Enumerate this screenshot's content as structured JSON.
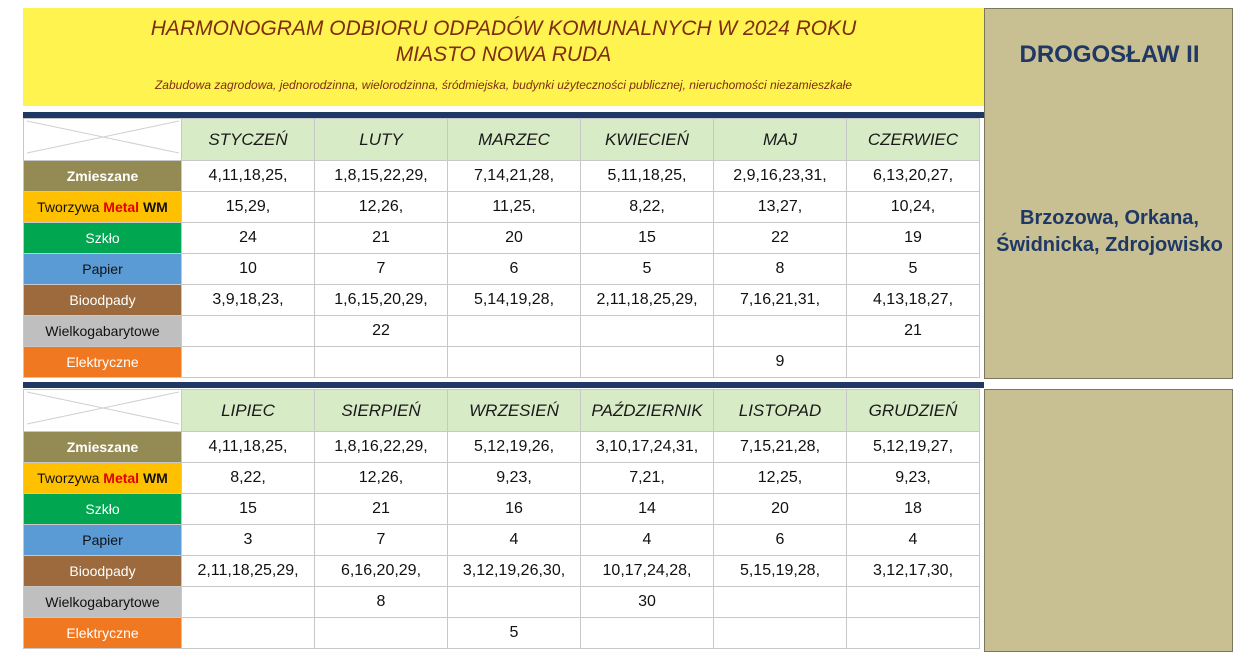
{
  "header": {
    "title_line1": "HARMONOGRAM ODBIORU  ODPADÓW  KOMUNALNYCH W 2024 ROKU",
    "title_line2": "MIASTO NOWA RUDA",
    "subtitle": "Zabudowa zagrodowa, jednorodzinna, wielorodzinna, śródmiejska, budynki użyteczności publicznej, nieruchomości niezamieszkałe"
  },
  "side": {
    "district": "DROGOSŁAW II",
    "streets_line1": "Brzozowa, Orkana,",
    "streets_line2": "Świdnicka, Zdrojowisko"
  },
  "categories": {
    "zmieszane": "Zmieszane",
    "tworzywa_prefix": "Tworzywa ",
    "tworzywa_metal": "Metal",
    "tworzywa_wm": " WM",
    "szklo": "Szkło",
    "papier": "Papier",
    "bioodpady": "Bioodpady",
    "wielkogabarytowe": "Wielkogabarytowe",
    "elektryczne": "Elektryczne"
  },
  "colors": {
    "header_bg": "#FFF44F",
    "title_text": "#7E2C12",
    "separator": "#1F3864",
    "side_panel": "#C8BF93",
    "month_header_bg": "#D8EBC7",
    "zmieszane": "#948A54",
    "tworzywa": "#FFC000",
    "szklo": "#00A650",
    "papier": "#5B9BD5",
    "bioodpady": "#9C6A3C",
    "wielkogabarytowe": "#BFBFBF",
    "elektryczne": "#F07820"
  },
  "table1": {
    "months": [
      "STYCZEŃ",
      "LUTY",
      "MARZEC",
      "KWIECIEŃ",
      "MAJ",
      "CZERWIEC"
    ],
    "zmieszane": [
      "4,11,18,25,",
      "1,8,15,22,29,",
      "7,14,21,28,",
      "5,11,18,25,",
      "2,9,16,23,31,",
      "6,13,20,27,"
    ],
    "tworzywa": [
      "15,29,",
      "12,26,",
      "11,25,",
      "8,22,",
      "13,27,",
      "10,24,"
    ],
    "szklo": [
      "24",
      "21",
      "20",
      "15",
      "22",
      "19"
    ],
    "papier": [
      "10",
      "7",
      "6",
      "5",
      "8",
      "5"
    ],
    "bioodpady": [
      "3,9,18,23,",
      "1,6,15,20,29,",
      "5,14,19,28,",
      "2,11,18,25,29,",
      "7,16,21,31,",
      "4,13,18,27,"
    ],
    "wielkogabarytowe": [
      "",
      "22",
      "",
      "",
      "",
      "21"
    ],
    "elektryczne": [
      "",
      "",
      "",
      "",
      "9",
      ""
    ]
  },
  "table2": {
    "months": [
      "LIPIEC",
      "SIERPIEŃ",
      "WRZESIEŃ",
      "PAŹDZIERNIK",
      "LISTOPAD",
      "GRUDZIEŃ"
    ],
    "zmieszane": [
      "4,11,18,25,",
      "1,8,16,22,29,",
      "5,12,19,26,",
      "3,10,17,24,31,",
      "7,15,21,28,",
      "5,12,19,27,"
    ],
    "tworzywa": [
      "8,22,",
      "12,26,",
      "9,23,",
      "7,21,",
      "12,25,",
      "9,23,"
    ],
    "szklo": [
      "15",
      "21",
      "16",
      "14",
      "20",
      "18"
    ],
    "papier": [
      "3",
      "7",
      "4",
      "4",
      "6",
      "4"
    ],
    "bioodpady": [
      "2,11,18,25,29,",
      "6,16,20,29,",
      "3,12,19,26,30,",
      "10,17,24,28,",
      "5,15,19,28,",
      "3,12,17,30,"
    ],
    "wielkogabarytowe": [
      "",
      "8",
      "",
      "30",
      "",
      ""
    ],
    "elektryczne": [
      "",
      "",
      "5",
      "",
      "",
      ""
    ]
  }
}
